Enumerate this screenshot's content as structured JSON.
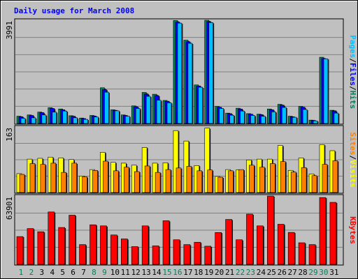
{
  "colors": {
    "background": "#c0c0c0",
    "plot_bg": "#c0c0c0",
    "grid": "#808080",
    "title": "#0000ff",
    "hits": "#00805c",
    "files": "#0000ff",
    "pages": "#00c0ff",
    "visits": "#ffff00",
    "sites": "#ff8000",
    "kbytes": "#ff0000",
    "weekday": "#000000",
    "weekend": "#00805c"
  },
  "chart_data": {
    "type": "bar",
    "title": "Daily usage for March 2008",
    "days": [
      "1",
      "2",
      "3",
      "4",
      "5",
      "6",
      "7",
      "8",
      "9",
      "10",
      "11",
      "12",
      "13",
      "14",
      "15",
      "16",
      "17",
      "18",
      "19",
      "20",
      "21",
      "22",
      "23",
      "24",
      "25",
      "26",
      "27",
      "28",
      "29",
      "30",
      "31"
    ],
    "weekend_days": [
      "1",
      "2",
      "8",
      "9",
      "15",
      "16",
      "22",
      "23",
      "29",
      "30"
    ],
    "panels": [
      {
        "id": "top",
        "ymax_label": "3991",
        "ymax": 3991,
        "legend": [
          {
            "text": "Pages",
            "color": "#00c0ff"
          },
          {
            "text": "/",
            "color": "#000000"
          },
          {
            "text": "Files",
            "color": "#0000ff"
          },
          {
            "text": "/",
            "color": "#000000"
          },
          {
            "text": "Hits",
            "color": "#00805c"
          }
        ],
        "series": [
          {
            "name": "Hits",
            "color": "#00805c",
            "values": [
              280,
              330,
              440,
              610,
              560,
              300,
              210,
              310,
              1380,
              530,
              330,
              680,
              1200,
              1130,
              890,
              3980,
              3220,
              1490,
              3990,
              660,
              400,
              590,
              380,
              360,
              560,
              740,
              280,
              660,
              130,
              2560,
              510
            ]
          },
          {
            "name": "Files",
            "color": "#0000ff",
            "values": [
              260,
              310,
              420,
              580,
              530,
              280,
              190,
              290,
              1310,
              510,
              310,
              650,
              1140,
              1080,
              860,
              3920,
              3160,
              1450,
              3940,
              630,
              380,
              560,
              360,
              340,
              530,
              710,
              260,
              630,
              120,
              2510,
              490
            ]
          },
          {
            "name": "Pages",
            "color": "#00c0ff",
            "values": [
              200,
              220,
              330,
              440,
              480,
              220,
              160,
              250,
              1210,
              490,
              280,
              580,
              1050,
              900,
              800,
              3880,
              3100,
              1400,
              3900,
              580,
              320,
              480,
              310,
              280,
              450,
              620,
              240,
              540,
              100,
              2500,
              400
            ]
          }
        ]
      },
      {
        "id": "middle",
        "ymax_label": "163",
        "ymax": 163,
        "legend": [
          {
            "text": "Sites",
            "color": "#ff8000"
          },
          {
            "text": "/",
            "color": "#000000"
          },
          {
            "text": "Visits",
            "color": "#ffff00"
          }
        ],
        "series": [
          {
            "name": "Visits",
            "color": "#ffff00",
            "values": [
              47,
              83,
              85,
              88,
              86,
              82,
              41,
              57,
              100,
              75,
              73,
              68,
              112,
              73,
              74,
              154,
              128,
              67,
              160,
              40,
              57,
              56,
              81,
              83,
              83,
              117,
              55,
              86,
              46,
              119,
              104
            ]
          },
          {
            "name": "Sites",
            "color": "#ff8000",
            "values": [
              45,
              72,
              70,
              73,
              50,
              73,
              39,
              55,
              78,
              54,
              63,
              52,
              66,
              50,
              57,
              61,
              65,
              54,
              56,
              38,
              54,
              57,
              68,
              63,
              72,
              77,
              51,
              62,
              42,
              70,
              79
            ]
          }
        ]
      },
      {
        "id": "bottom",
        "ymax_label": "63901",
        "ymax": 63901,
        "legend": [
          {
            "text": "KBytes",
            "color": "#ff0000"
          }
        ],
        "series": [
          {
            "name": "KBytes",
            "color": "#ff0000",
            "values": [
              26000,
              33500,
              30500,
              49000,
              34500,
              46000,
              18500,
              37000,
              36000,
              27500,
              23800,
              16600,
              36000,
              17300,
              40800,
              23000,
              18500,
              20700,
              17000,
              29800,
              42000,
              23000,
              47000,
              36000,
              63901,
              37500,
              29900,
              20200,
              18500,
              62500,
              58000
            ]
          }
        ]
      }
    ]
  }
}
